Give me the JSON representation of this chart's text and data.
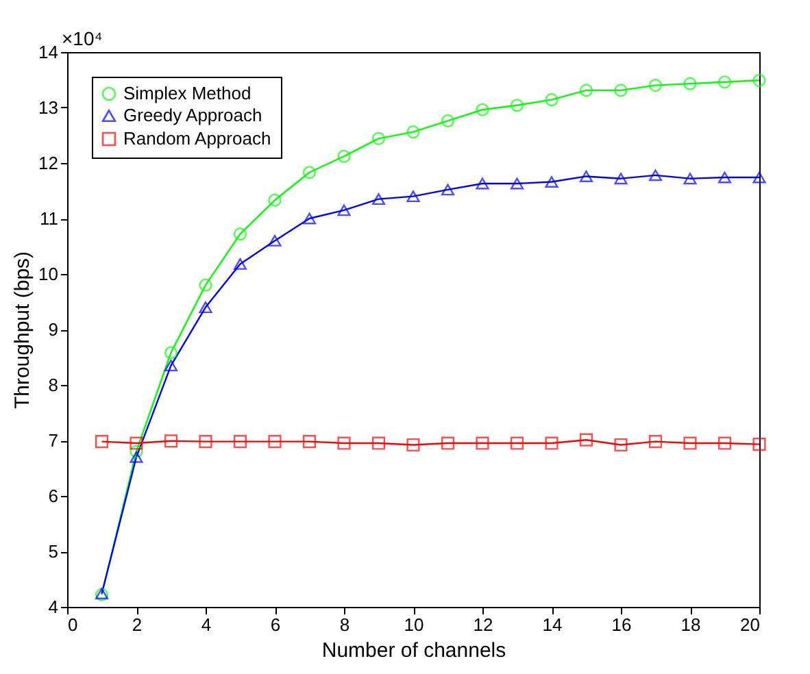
{
  "chart_data": {
    "type": "line",
    "xlabel": "Number of channels",
    "ylabel": "Throughput (bps)",
    "x": [
      1,
      2,
      3,
      4,
      5,
      6,
      7,
      8,
      9,
      10,
      11,
      12,
      13,
      14,
      15,
      16,
      17,
      18,
      19,
      20
    ],
    "series": [
      {
        "name": "Simplex Method",
        "color": "#00ff00",
        "marker": "circle",
        "values": [
          4.22,
          6.8,
          8.58,
          9.8,
          10.72,
          11.33,
          11.83,
          12.12,
          12.44,
          12.56,
          12.76,
          12.96,
          13.04,
          13.14,
          13.31,
          13.31,
          13.4,
          13.43,
          13.46,
          13.49
        ]
      },
      {
        "name": "Greedy Approach",
        "color": "#0000ff",
        "marker": "triangle",
        "values": [
          4.24,
          6.7,
          8.35,
          9.4,
          10.18,
          10.6,
          11.0,
          11.15,
          11.35,
          11.4,
          11.52,
          11.63,
          11.63,
          11.66,
          11.76,
          11.72,
          11.78,
          11.72,
          11.74,
          11.74
        ]
      },
      {
        "name": "Random Approach",
        "color": "#ff0000",
        "marker": "square",
        "values": [
          6.98,
          6.95,
          6.99,
          6.98,
          6.98,
          6.98,
          6.98,
          6.95,
          6.95,
          6.92,
          6.95,
          6.95,
          6.95,
          6.95,
          7.01,
          6.92,
          6.98,
          6.95,
          6.95,
          6.93
        ]
      }
    ],
    "xlim": [
      0,
      20
    ],
    "xticks": [
      0,
      2,
      4,
      6,
      8,
      10,
      12,
      14,
      16,
      18,
      20
    ],
    "ylim": [
      4,
      14
    ],
    "yticks": [
      4,
      5,
      6,
      7,
      8,
      9,
      10,
      11,
      12,
      13,
      14
    ],
    "annotations": [
      "×10⁴"
    ],
    "grid": false,
    "legend": "top left",
    "line_style": "solid"
  }
}
